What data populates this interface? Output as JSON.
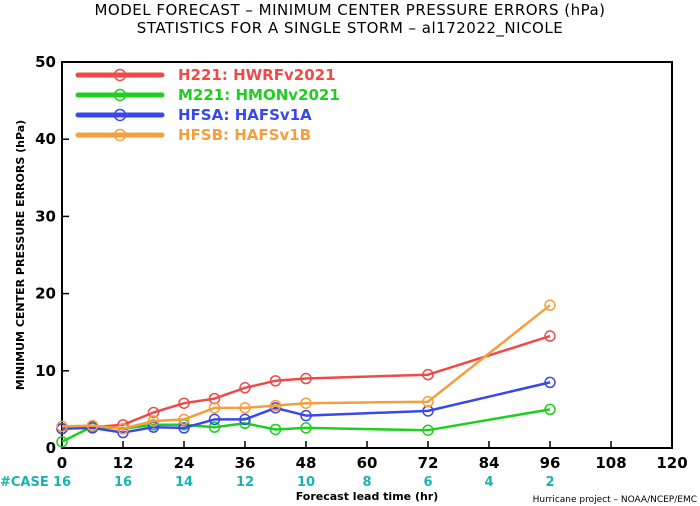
{
  "header": {
    "title_line1": "MODEL FORECAST – MINIMUM CENTER PRESSURE ERRORS (hPa)",
    "title_line2": "STATISTICS FOR A SINGLE STORM – al172022_NICOLE"
  },
  "footer": {
    "credit": "Hurricane project – NOAA/NCEP/EMC"
  },
  "chart_data": {
    "type": "line",
    "title": "MODEL FORECAST – MINIMUM CENTER PRESSURE ERRORS (hPa) / STATISTICS FOR A SINGLE STORM – al172022_NICOLE",
    "xlabel": "Forecast lead time (hr)",
    "ylabel": "MINIMUM CENTER PRESSURE ERRORS (hPa)",
    "xlim": [
      0,
      120
    ],
    "ylim": [
      0,
      50
    ],
    "xticks": [
      0,
      12,
      24,
      36,
      48,
      60,
      72,
      84,
      96,
      108,
      120
    ],
    "yticks": [
      0,
      10,
      20,
      30,
      40,
      50
    ],
    "grid": false,
    "legend_position": "top-left",
    "case_label": "#CASE",
    "cases": [
      {
        "x": 0,
        "n": 16
      },
      {
        "x": 12,
        "n": 16
      },
      {
        "x": 24,
        "n": 14
      },
      {
        "x": 36,
        "n": 12
      },
      {
        "x": 48,
        "n": 10
      },
      {
        "x": 60,
        "n": 8
      },
      {
        "x": 72,
        "n": 6
      },
      {
        "x": 84,
        "n": 4
      },
      {
        "x": 96,
        "n": 2
      }
    ],
    "series": [
      {
        "name": "H221: HWRFv2021",
        "color": "#ef4a4a",
        "x": [
          0,
          6,
          12,
          18,
          24,
          30,
          36,
          42,
          48,
          72,
          96
        ],
        "values": [
          2.5,
          2.7,
          3.0,
          4.6,
          5.8,
          6.4,
          7.8,
          8.7,
          9.0,
          9.5,
          14.5
        ]
      },
      {
        "name": "M221: HMONv2021",
        "color": "#1fcf1f",
        "x": [
          0,
          6,
          12,
          18,
          24,
          30,
          36,
          42,
          48,
          72,
          96
        ],
        "values": [
          0.8,
          2.8,
          2.5,
          3.0,
          3.0,
          2.7,
          3.2,
          2.4,
          2.6,
          2.3,
          5.0
        ]
      },
      {
        "name": "HFSA: HAFSv1A",
        "color": "#3a48ea",
        "x": [
          0,
          6,
          12,
          18,
          24,
          30,
          36,
          42,
          48,
          72,
          96
        ],
        "values": [
          2.5,
          2.6,
          2.0,
          2.7,
          2.6,
          3.7,
          3.7,
          5.2,
          4.2,
          4.8,
          8.5
        ]
      },
      {
        "name": "HFSB: HAFSv1B",
        "color": "#f59e3c",
        "x": [
          0,
          6,
          12,
          18,
          24,
          30,
          36,
          42,
          48,
          72,
          96
        ],
        "values": [
          2.8,
          2.9,
          2.5,
          3.5,
          3.7,
          5.2,
          5.2,
          5.5,
          5.8,
          6.0,
          18.5
        ]
      }
    ]
  }
}
